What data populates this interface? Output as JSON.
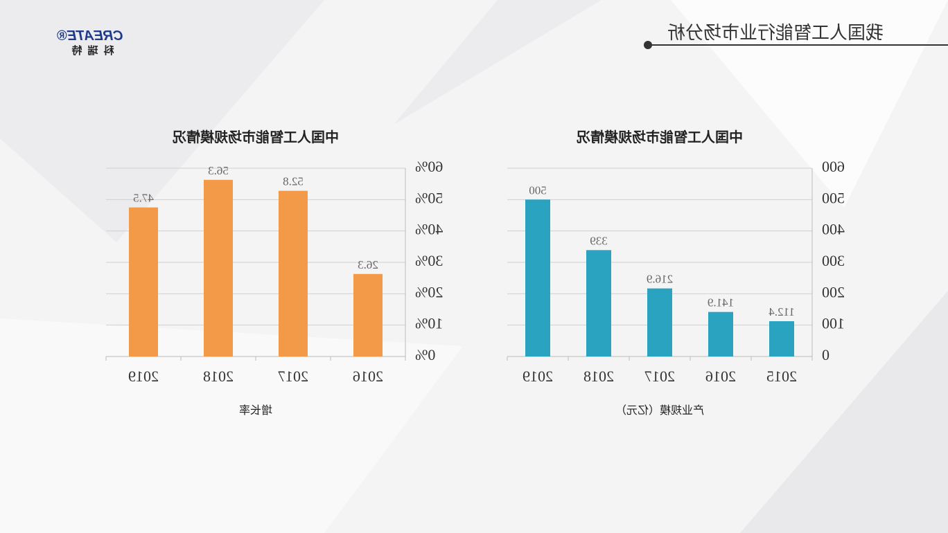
{
  "header": {
    "title": "我国人工智能行业市场分析",
    "logo": "CREATE®",
    "logo_sub": "科瑞特"
  },
  "chart_data": [
    {
      "type": "bar",
      "title": "中国人工智能市场规模情况",
      "x_label": "产业规模（亿元）",
      "categories": [
        "2015",
        "2016",
        "2017",
        "2018",
        "2019"
      ],
      "values": [
        112.4,
        141.9,
        216.9,
        339,
        500
      ],
      "color": "#2aa3c0",
      "ylim": [
        0,
        600
      ],
      "yticks": [
        0,
        100,
        200,
        300,
        400,
        500,
        600
      ],
      "grid": true
    },
    {
      "type": "bar",
      "title": "中国人工智能市场规模情况",
      "x_label": "增长率",
      "categories": [
        "2016",
        "2017",
        "2018",
        "2019"
      ],
      "values": [
        26.3,
        52.8,
        56.3,
        47.5
      ],
      "color": "#f29a48",
      "ylim": [
        0,
        60
      ],
      "yticks": [
        {
          "value": 0,
          "label": "0%"
        },
        {
          "value": 10,
          "label": "10%"
        },
        {
          "value": 20,
          "label": "20%"
        },
        {
          "value": 30,
          "label": "30%"
        },
        {
          "value": 40,
          "label": "40%"
        },
        {
          "value": 50,
          "label": "50%"
        },
        {
          "value": 60,
          "label": "60%"
        }
      ],
      "grid": true
    }
  ]
}
